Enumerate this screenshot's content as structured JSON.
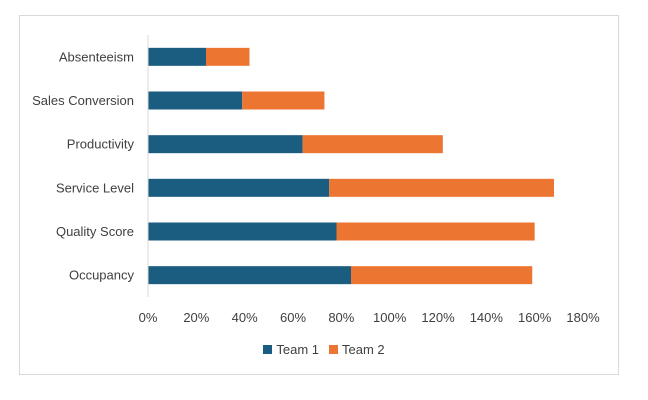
{
  "chart_data": {
    "type": "bar",
    "orientation": "horizontal",
    "stacked": true,
    "title": "",
    "xlabel": "",
    "ylabel": "",
    "categories": [
      "Absenteeism",
      "Sales Conversion",
      "Productivity",
      "Service Level",
      "Quality Score",
      "Occupancy"
    ],
    "series": [
      {
        "name": "Team 1",
        "color": "#1b5d80",
        "values": [
          24,
          39,
          64,
          75,
          78,
          84
        ]
      },
      {
        "name": "Team 2",
        "color": "#ed7532",
        "values": [
          18,
          34,
          58,
          93,
          82,
          75
        ]
      }
    ],
    "xlim": [
      0,
      180
    ],
    "xticks": [
      "0%",
      "20%",
      "40%",
      "60%",
      "80%",
      "100%",
      "120%",
      "140%",
      "160%",
      "180%"
    ],
    "legend_position": "bottom",
    "grid": false
  }
}
